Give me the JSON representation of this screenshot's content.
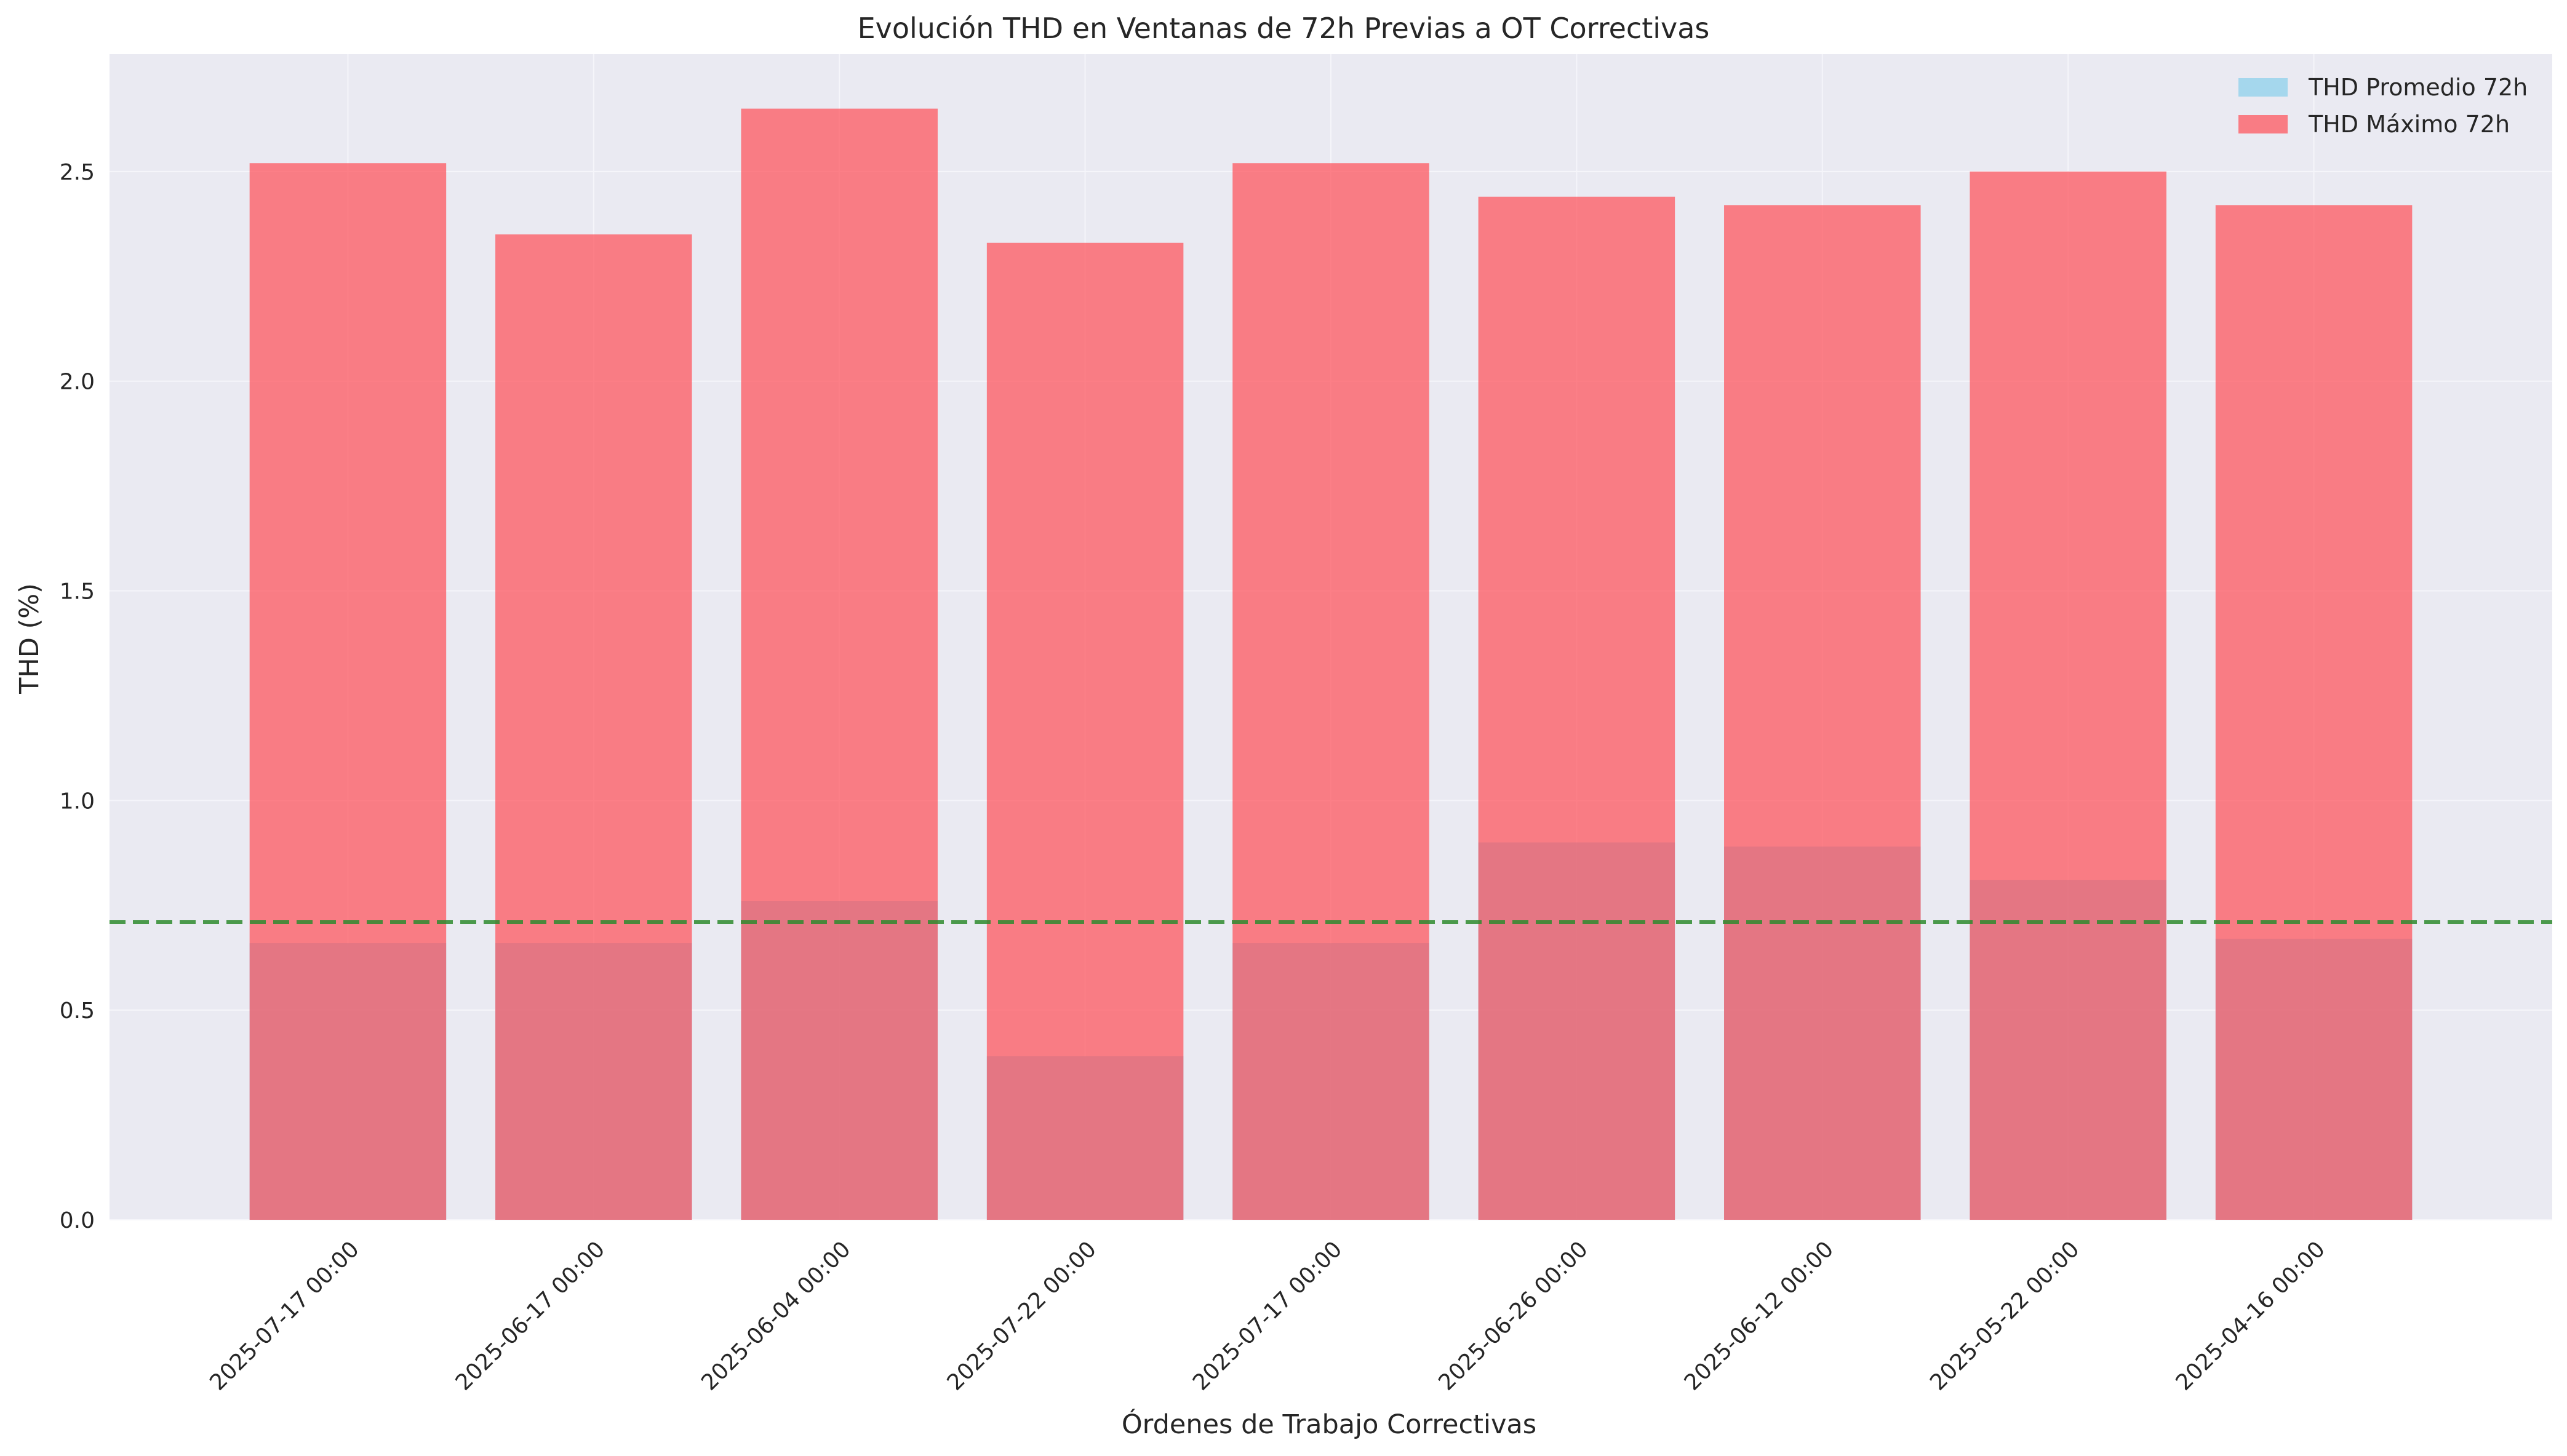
{
  "chart_data": {
    "type": "bar",
    "title": "Evolución THD en Ventanas de 72h Previas a OT Correctivas",
    "xlabel": "Órdenes de Trabajo Correctivas",
    "ylabel": "THD (%)",
    "ylim": [
      0,
      2.78
    ],
    "yticks": [
      0.0,
      0.5,
      1.0,
      1.5,
      2.0,
      2.5
    ],
    "ytick_labels": [
      "0.0",
      "0.5",
      "1.0",
      "1.5",
      "2.0",
      "2.5"
    ],
    "categories": [
      "2025-07-17 00:00",
      "2025-06-17 00:00",
      "2025-06-04 00:00",
      "2025-07-22 00:00",
      "2025-07-17 00:00",
      "2025-06-26 00:00",
      "2025-06-12 00:00",
      "2025-05-22 00:00",
      "2025-04-16 00:00"
    ],
    "series": [
      {
        "name": "THD Promedio 72h",
        "color": "#87ceeb",
        "alpha": 0.7,
        "values": [
          0.66,
          0.66,
          0.76,
          0.39,
          0.66,
          0.9,
          0.89,
          0.81,
          0.67
        ]
      },
      {
        "name": "THD Máximo 72h",
        "color": "#ff4d55",
        "alpha": 0.7,
        "values": [
          2.52,
          2.35,
          2.65,
          2.33,
          2.52,
          2.44,
          2.42,
          2.5,
          2.42
        ]
      }
    ],
    "reference_line": {
      "value": 0.71,
      "color": "#2e8b2e",
      "style": "dashed"
    },
    "grid": true,
    "legend_position": "top-right",
    "background_color": "#eaeaf2"
  }
}
